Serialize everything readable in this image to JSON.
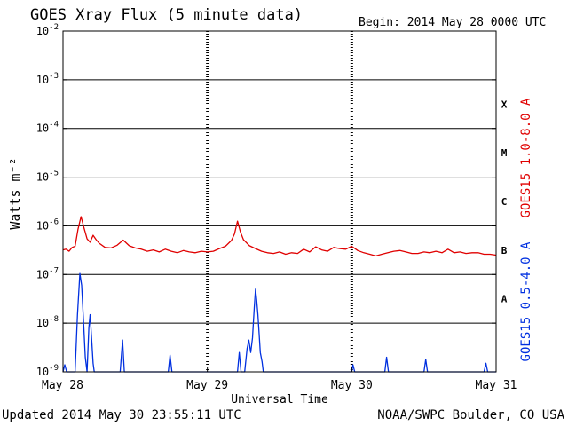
{
  "header": {
    "title": "GOES Xray Flux (5 minute data)",
    "begin_label": "Begin:",
    "begin_value": "2014 May 28 0000 UTC"
  },
  "footer": {
    "updated": "Updated 2014 May 30 23:55:11 UTC",
    "credit": "NOAA/SWPC Boulder, CO USA"
  },
  "colors": {
    "long_channel": "#e00000",
    "short_channel": "#0030e0",
    "axis": "#000000",
    "background": "#ffffff"
  },
  "chart_data": {
    "type": "line",
    "title": "GOES Xray Flux (5 minute data)",
    "xlabel": "Universal Time",
    "ylabel": "Watts m^-2",
    "y_scale": "log",
    "xlim": [
      0,
      72
    ],
    "x_units": "hours since 2014 May 28 0000 UTC",
    "ylim": [
      1e-09,
      0.01
    ],
    "y_ticks": [
      {
        "base": "10",
        "exp": "-9",
        "value": 1e-09
      },
      {
        "base": "10",
        "exp": "-8",
        "value": 1e-08
      },
      {
        "base": "10",
        "exp": "-7",
        "value": 1e-07
      },
      {
        "base": "10",
        "exp": "-6",
        "value": 1e-06
      },
      {
        "base": "10",
        "exp": "-5",
        "value": 1e-05
      },
      {
        "base": "10",
        "exp": "-4",
        "value": 0.0001
      },
      {
        "base": "10",
        "exp": "-3",
        "value": 0.001
      },
      {
        "base": "10",
        "exp": "-2",
        "value": 0.01
      }
    ],
    "x_ticks": [
      {
        "label": "May 28",
        "x": 0
      },
      {
        "label": "May 29",
        "x": 24
      },
      {
        "label": "May 30",
        "x": 48
      },
      {
        "label": "May 31",
        "x": 72
      }
    ],
    "grid": true,
    "flare_classes": [
      {
        "label": "X",
        "value": 0.000316
      },
      {
        "label": "M",
        "value": 3.16e-05
      },
      {
        "label": "C",
        "value": 3.16e-06
      },
      {
        "label": "B",
        "value": 3.16e-07
      },
      {
        "label": "A",
        "value": 3.16e-08
      }
    ],
    "series": [
      {
        "name": "GOES15 1.0-8.0 A",
        "color": "#e00000",
        "points": [
          [
            0,
            3.2e-07
          ],
          [
            0.5,
            3.3e-07
          ],
          [
            1,
            3e-07
          ],
          [
            1.5,
            3.6e-07
          ],
          [
            2,
            3.8e-07
          ],
          [
            2.5,
            8.5e-07
          ],
          [
            3,
            1.55e-06
          ],
          [
            3.5,
            9e-07
          ],
          [
            4,
            5.4e-07
          ],
          [
            4.5,
            4.6e-07
          ],
          [
            5,
            6.4e-07
          ],
          [
            5.5,
            5.2e-07
          ],
          [
            6,
            4.4e-07
          ],
          [
            7,
            3.6e-07
          ],
          [
            8,
            3.5e-07
          ],
          [
            9,
            4e-07
          ],
          [
            10,
            5.1e-07
          ],
          [
            11,
            3.9e-07
          ],
          [
            12,
            3.5e-07
          ],
          [
            13,
            3.3e-07
          ],
          [
            14,
            3e-07
          ],
          [
            15,
            3.2e-07
          ],
          [
            16,
            2.9e-07
          ],
          [
            17,
            3.3e-07
          ],
          [
            18,
            3e-07
          ],
          [
            19,
            2.8e-07
          ],
          [
            20,
            3.1e-07
          ],
          [
            21,
            2.9e-07
          ],
          [
            22,
            2.8e-07
          ],
          [
            23,
            3e-07
          ],
          [
            24,
            2.9e-07
          ],
          [
            25,
            3e-07
          ],
          [
            26,
            3.4e-07
          ],
          [
            27,
            3.8e-07
          ],
          [
            28,
            5e-07
          ],
          [
            28.5,
            6.8e-07
          ],
          [
            29,
            1.25e-06
          ],
          [
            29.5,
            7.5e-07
          ],
          [
            30,
            5.2e-07
          ],
          [
            31,
            3.9e-07
          ],
          [
            32,
            3.4e-07
          ],
          [
            33,
            3e-07
          ],
          [
            34,
            2.8e-07
          ],
          [
            35,
            2.7e-07
          ],
          [
            36,
            2.9e-07
          ],
          [
            37,
            2.6e-07
          ],
          [
            38,
            2.8e-07
          ],
          [
            39,
            2.7e-07
          ],
          [
            40,
            3.3e-07
          ],
          [
            41,
            2.9e-07
          ],
          [
            42,
            3.7e-07
          ],
          [
            43,
            3.2e-07
          ],
          [
            44,
            3e-07
          ],
          [
            45,
            3.6e-07
          ],
          [
            46,
            3.4e-07
          ],
          [
            47,
            3.3e-07
          ],
          [
            48,
            3.8e-07
          ],
          [
            49,
            3.1e-07
          ],
          [
            50,
            2.8e-07
          ],
          [
            51,
            2.6e-07
          ],
          [
            52,
            2.4e-07
          ],
          [
            53,
            2.6e-07
          ],
          [
            54,
            2.8e-07
          ],
          [
            55,
            3e-07
          ],
          [
            56,
            3.1e-07
          ],
          [
            57,
            2.9e-07
          ],
          [
            58,
            2.7e-07
          ],
          [
            59,
            2.7e-07
          ],
          [
            60,
            2.9e-07
          ],
          [
            61,
            2.8e-07
          ],
          [
            62,
            3e-07
          ],
          [
            63,
            2.8e-07
          ],
          [
            64,
            3.3e-07
          ],
          [
            65,
            2.8e-07
          ],
          [
            66,
            2.9e-07
          ],
          [
            67,
            2.7e-07
          ],
          [
            68,
            2.8e-07
          ],
          [
            69,
            2.8e-07
          ],
          [
            70,
            2.6e-07
          ],
          [
            71,
            2.6e-07
          ],
          [
            72,
            2.5e-07
          ]
        ]
      },
      {
        "name": "GOES15 0.5-4.0 A",
        "color": "#0030e0",
        "points": [
          [
            0,
            1e-09
          ],
          [
            0.3,
            1.4e-09
          ],
          [
            0.6,
            1e-09
          ],
          [
            2,
            1e-09
          ],
          [
            2.4,
            1.5e-08
          ],
          [
            2.8,
            1.05e-07
          ],
          [
            3.1,
            6e-08
          ],
          [
            3.4,
            1.2e-08
          ],
          [
            3.7,
            2e-09
          ],
          [
            4.0,
            1e-09
          ],
          [
            4.3,
            8e-09
          ],
          [
            4.5,
            1.5e-08
          ],
          [
            4.7,
            6e-09
          ],
          [
            5.0,
            1.5e-09
          ],
          [
            5.2,
            1e-09
          ],
          [
            9.5,
            1e-09
          ],
          [
            9.9,
            4.5e-09
          ],
          [
            10.2,
            1e-09
          ],
          [
            17.5,
            1e-09
          ],
          [
            17.8,
            2.2e-09
          ],
          [
            18.1,
            1e-09
          ],
          [
            29,
            1e-09
          ],
          [
            29.3,
            2.5e-09
          ],
          [
            29.6,
            1e-09
          ],
          [
            30.2,
            1e-09
          ],
          [
            30.6,
            3e-09
          ],
          [
            30.9,
            4.5e-09
          ],
          [
            31.2,
            2.5e-09
          ],
          [
            31.5,
            5e-09
          ],
          [
            31.8,
            2.1e-08
          ],
          [
            32.0,
            5e-08
          ],
          [
            32.2,
            3e-08
          ],
          [
            32.4,
            1.5e-08
          ],
          [
            32.6,
            6e-09
          ],
          [
            32.8,
            2.5e-09
          ],
          [
            33.1,
            1.6e-09
          ],
          [
            33.3,
            1e-09
          ],
          [
            48,
            1e-09
          ],
          [
            48.2,
            1.4e-09
          ],
          [
            48.5,
            1e-09
          ],
          [
            53.5,
            1e-09
          ],
          [
            53.8,
            2e-09
          ],
          [
            54.1,
            1e-09
          ],
          [
            60,
            1e-09
          ],
          [
            60.3,
            1.8e-09
          ],
          [
            60.6,
            1e-09
          ],
          [
            70,
            1e-09
          ],
          [
            70.3,
            1.5e-09
          ],
          [
            70.6,
            1e-09
          ],
          [
            72,
            1e-09
          ]
        ]
      }
    ]
  }
}
